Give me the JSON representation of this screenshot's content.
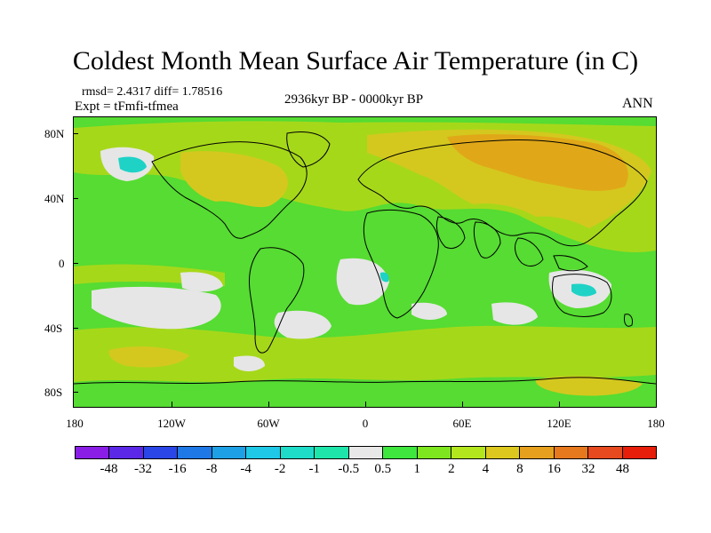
{
  "title": "Coldest Month Mean Surface Air Temperature (in C)",
  "stats": {
    "line1": "rmsd= 2.4317 diff= 1.78516",
    "line2": "Expt = tFmfi-tfmea"
  },
  "period": "2936kyr BP - 0000kyr BP",
  "season": "ANN",
  "lat_labels": [
    "80N",
    "40N",
    "0",
    "40S",
    "80S"
  ],
  "lon_labels": [
    "180",
    "120W",
    "60W",
    "0",
    "60E",
    "120E",
    "180"
  ],
  "colorbar": {
    "colors": [
      "#8a1ee6",
      "#5a28e6",
      "#2a46e6",
      "#1e78e6",
      "#1ea0e6",
      "#1ec8e6",
      "#1edcc8",
      "#1ee6aa",
      "#e8e8e8",
      "#3ee63e",
      "#7ee61e",
      "#b4e61e",
      "#dcc81e",
      "#e6a01e",
      "#e6781e",
      "#e64a1e",
      "#e61e0a"
    ],
    "labels": [
      "-48",
      "-32",
      "-16",
      "-8",
      "-4",
      "-2",
      "-1",
      "-0.5",
      "0.5",
      "1",
      "2",
      "4",
      "8",
      "16",
      "32",
      "48"
    ]
  },
  "map_colors": {
    "ocean_base": "#56dc32",
    "warm_1": "#a6d81a",
    "warm_2": "#d4c81e",
    "warm_3": "#e0a818",
    "neutral": "#e6e6e6",
    "cool": "#1ed2c6"
  }
}
